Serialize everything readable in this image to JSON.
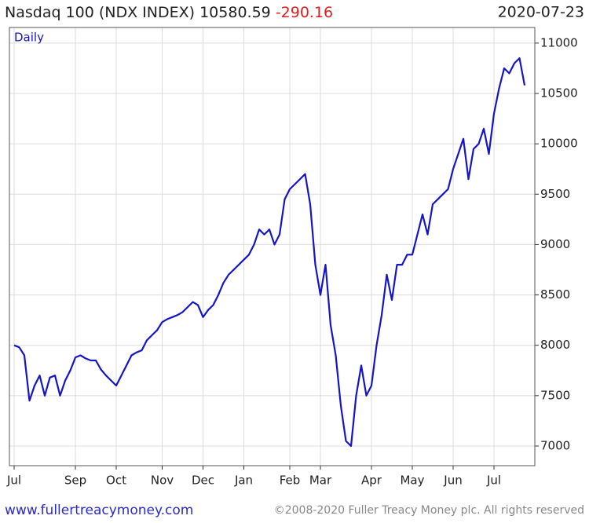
{
  "chart_data": {
    "type": "line",
    "title": "Nasdaq 100 (NDX INDEX) 10580.59",
    "change": "-290.16",
    "date": "2020-07-23",
    "footer_url": "www.fullertreacymoney.com",
    "footer_copyright": "©2008-2020 Fuller Treacy Money plc. All rights reserved",
    "categories": [
      "Jul",
      null,
      null,
      null,
      null,
      null,
      null,
      null,
      null,
      null,
      null,
      null,
      "Sep",
      null,
      null,
      null,
      null,
      null,
      null,
      null,
      "Oct",
      null,
      null,
      null,
      null,
      null,
      null,
      null,
      null,
      "Nov",
      null,
      null,
      null,
      null,
      null,
      null,
      null,
      "Dec",
      null,
      null,
      null,
      null,
      null,
      null,
      null,
      "Jan",
      null,
      null,
      null,
      null,
      null,
      null,
      null,
      null,
      "Feb",
      null,
      null,
      null,
      null,
      null,
      "Mar",
      null,
      null,
      null,
      null,
      null,
      null,
      null,
      null,
      null,
      "Apr",
      null,
      null,
      null,
      null,
      null,
      null,
      null,
      "May",
      null,
      null,
      null,
      null,
      null,
      null,
      null,
      "Jun",
      null,
      null,
      null,
      null,
      null,
      null,
      null,
      "Jul",
      null,
      null,
      null,
      null,
      null,
      null
    ],
    "series": [
      {
        "name": "Daily",
        "color": "#1515c8",
        "values": [
          8000,
          7980,
          7900,
          7450,
          7600,
          7700,
          7500,
          7680,
          7700,
          7500,
          7650,
          7750,
          7880,
          7900,
          7870,
          7850,
          7850,
          7760,
          7700,
          7650,
          7600,
          7700,
          7800,
          7900,
          7930,
          7950,
          8050,
          8100,
          8150,
          8230,
          8260,
          8280,
          8300,
          8330,
          8380,
          8430,
          8400,
          8280,
          8350,
          8400,
          8500,
          8620,
          8700,
          8750,
          8800,
          8850,
          8900,
          9000,
          9150,
          9100,
          9150,
          9000,
          9100,
          9450,
          9550,
          9600,
          9650,
          9700,
          9400,
          8800,
          8500,
          8800,
          8200,
          7900,
          7400,
          7050,
          7000,
          7500,
          7800,
          7500,
          7600,
          8000,
          8300,
          8700,
          8450,
          8800,
          8800,
          8900,
          8900,
          9100,
          9300,
          9100,
          9400,
          9450,
          9500,
          9550,
          9750,
          9900,
          10050,
          9650,
          9950,
          10000,
          10150,
          9900,
          10300,
          10550,
          10750,
          10700,
          10800,
          10850,
          10580.59
        ]
      }
    ],
    "ylim": [
      6805,
      11155
    ],
    "yticks": [
      7000,
      7500,
      8000,
      8500,
      9000,
      9500,
      10000,
      10500,
      11000
    ],
    "grid": true
  }
}
